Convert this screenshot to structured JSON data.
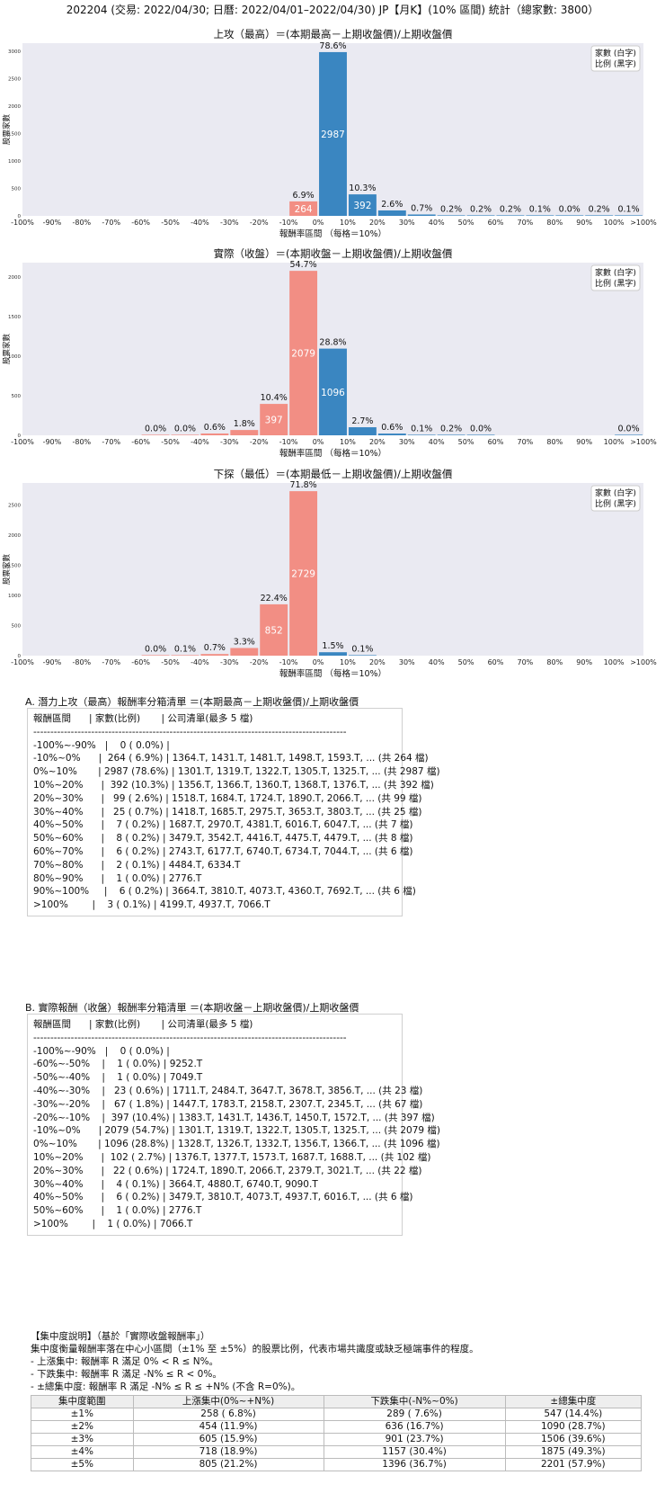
{
  "page_title": "202204 (交易: 2022/04/30; 日曆: 2022/04/01–2022/04/30) JP【月K】(10% 區間) 統計（總家數: 3800）",
  "chart_data": [
    {
      "type": "bar",
      "title": "上攻（最高）＝(本期最高－上期收盤價)/上期收盤價",
      "xlabel": "報酬率區間 （每格＝10%）",
      "ylabel": "股票家數",
      "legend": [
        "家數 (白字)",
        "比例 (黑字)"
      ],
      "legend_position": "top-right",
      "x_tick_labels": [
        "-100%",
        "-90%",
        "-80%",
        "-70%",
        "-60%",
        "-50%",
        "-40%",
        "-30%",
        "-20%",
        "-10%",
        "0%",
        "10%",
        "20%",
        "30%",
        "40%",
        "50%",
        "60%",
        "70%",
        "80%",
        "90%",
        "100%",
        ">100%"
      ],
      "y_ticks": [
        0,
        500,
        1000,
        1500,
        2000,
        2500,
        3000
      ],
      "ylim": [
        0,
        3150
      ],
      "bars": [
        {
          "bin": "-10%~0%",
          "index": 9,
          "count": 264,
          "pct": "6.9%",
          "color": "#f28e84"
        },
        {
          "bin": "0%~10%",
          "index": 10,
          "count": 2987,
          "pct": "78.6%",
          "color": "#3a86c1"
        },
        {
          "bin": "10%~20%",
          "index": 11,
          "count": 392,
          "pct": "10.3%",
          "color": "#3a86c1"
        },
        {
          "bin": "20%~30%",
          "index": 12,
          "count": 99,
          "pct": "2.6%",
          "color": "#3a86c1"
        },
        {
          "bin": "30%~40%",
          "index": 13,
          "count": 25,
          "pct": "0.7%",
          "color": "#3a86c1"
        },
        {
          "bin": "40%~50%",
          "index": 14,
          "count": 7,
          "pct": "0.2%",
          "color": "#3a86c1"
        },
        {
          "bin": "50%~60%",
          "index": 15,
          "count": 8,
          "pct": "0.2%",
          "color": "#3a86c1"
        },
        {
          "bin": "60%~70%",
          "index": 16,
          "count": 6,
          "pct": "0.2%",
          "color": "#3a86c1"
        },
        {
          "bin": "70%~80%",
          "index": 17,
          "count": 2,
          "pct": "0.1%",
          "color": "#3a86c1"
        },
        {
          "bin": "80%~90%",
          "index": 18,
          "count": 1,
          "pct": "0.0%",
          "color": "#3a86c1"
        },
        {
          "bin": "90%~100%",
          "index": 19,
          "count": 6,
          "pct": "0.2%",
          "color": "#3a86c1"
        },
        {
          "bin": ">100%",
          "index": 20,
          "count": 3,
          "pct": "0.1%",
          "color": "#3a86c1"
        }
      ]
    },
    {
      "type": "bar",
      "title": "實際（收盤）＝(本期收盤－上期收盤價)/上期收盤價",
      "xlabel": "報酬率區間 （每格＝10%）",
      "ylabel": "股票家數",
      "legend": [
        "家數 (白字)",
        "比例 (黑字)"
      ],
      "legend_position": "top-right",
      "x_tick_labels": [
        "-100%",
        "-90%",
        "-80%",
        "-70%",
        "-60%",
        "-50%",
        "-40%",
        "-30%",
        "-20%",
        "-10%",
        "0%",
        "10%",
        "20%",
        "30%",
        "40%",
        "50%",
        "60%",
        "70%",
        "80%",
        "90%",
        "100%",
        ">100%"
      ],
      "y_ticks": [
        0,
        500,
        1000,
        1500,
        2000
      ],
      "ylim": [
        0,
        2183
      ],
      "bars": [
        {
          "bin": "-60%~-50%",
          "index": 4,
          "count": 1,
          "pct": "0.0%",
          "color": "#f28e84"
        },
        {
          "bin": "-50%~-40%",
          "index": 5,
          "count": 1,
          "pct": "0.0%",
          "color": "#f28e84"
        },
        {
          "bin": "-40%~-30%",
          "index": 6,
          "count": 23,
          "pct": "0.6%",
          "color": "#f28e84"
        },
        {
          "bin": "-30%~-20%",
          "index": 7,
          "count": 67,
          "pct": "1.8%",
          "color": "#f28e84"
        },
        {
          "bin": "-20%~-10%",
          "index": 8,
          "count": 397,
          "pct": "10.4%",
          "color": "#f28e84"
        },
        {
          "bin": "-10%~0%",
          "index": 9,
          "count": 2079,
          "pct": "54.7%",
          "color": "#f28e84"
        },
        {
          "bin": "0%~10%",
          "index": 10,
          "count": 1096,
          "pct": "28.8%",
          "color": "#3a86c1"
        },
        {
          "bin": "10%~20%",
          "index": 11,
          "count": 102,
          "pct": "2.7%",
          "color": "#3a86c1"
        },
        {
          "bin": "20%~30%",
          "index": 12,
          "count": 22,
          "pct": "0.6%",
          "color": "#3a86c1"
        },
        {
          "bin": "30%~40%",
          "index": 13,
          "count": 4,
          "pct": "0.1%",
          "color": "#3a86c1"
        },
        {
          "bin": "40%~50%",
          "index": 14,
          "count": 6,
          "pct": "0.2%",
          "color": "#3a86c1"
        },
        {
          "bin": "50%~60%",
          "index": 15,
          "count": 1,
          "pct": "0.0%",
          "color": "#3a86c1"
        },
        {
          "bin": ">100%",
          "index": 20,
          "count": 1,
          "pct": "0.0%",
          "color": "#3a86c1"
        }
      ]
    },
    {
      "type": "bar",
      "title": "下探（最低）＝(本期最低－上期收盤價)/上期收盤價",
      "xlabel": "報酬率區間 （每格＝10%）",
      "ylabel": "股票家數",
      "legend": [
        "家數 (白字)",
        "比例 (黑字)"
      ],
      "legend_position": "top-right",
      "x_tick_labels": [
        "-100%",
        "-90%",
        "-80%",
        "-70%",
        "-60%",
        "-50%",
        "-40%",
        "-30%",
        "-20%",
        "-10%",
        "0%",
        "10%",
        "20%",
        "30%",
        "40%",
        "50%",
        "60%",
        "70%",
        "80%",
        "90%",
        "100%",
        ">100%"
      ],
      "y_ticks": [
        0,
        500,
        1000,
        1500,
        2000,
        2500
      ],
      "ylim": [
        0,
        2865
      ],
      "bars": [
        {
          "bin": "-60%~-50%",
          "index": 4,
          "count": 1,
          "pct": "0.0%",
          "color": "#f28e84"
        },
        {
          "bin": "-50%~-40%",
          "index": 5,
          "count": 3,
          "pct": "0.1%",
          "color": "#f28e84"
        },
        {
          "bin": "-40%~-30%",
          "index": 6,
          "count": 27,
          "pct": "0.7%",
          "color": "#f28e84"
        },
        {
          "bin": "-30%~-20%",
          "index": 7,
          "count": 127,
          "pct": "3.3%",
          "color": "#f28e84"
        },
        {
          "bin": "-20%~-10%",
          "index": 8,
          "count": 852,
          "pct": "22.4%",
          "color": "#f28e84"
        },
        {
          "bin": "-10%~0%",
          "index": 9,
          "count": 2729,
          "pct": "71.8%",
          "color": "#f28e84"
        },
        {
          "bin": "0%~10%",
          "index": 10,
          "count": 57,
          "pct": "1.5%",
          "color": "#3a86c1"
        },
        {
          "bin": "10%~20%",
          "index": 11,
          "count": 4,
          "pct": "0.1%",
          "color": "#3a86c1"
        }
      ]
    }
  ],
  "section_a": {
    "title": "A. 潛力上攻（最高）報酬率分箱清單 ＝(本期最高－上期收盤價)/上期收盤價",
    "lines": [
      "報酬區間      | 家數(比例)       | 公司清單(最多 5 檔)",
      "--------------------------------------------------------------------------------------------",
      "-100%~-90%   |    0 ( 0.0%) |",
      "-10%~0%      |  264 ( 6.9%) | 1364.T, 1431.T, 1481.T, 1498.T, 1593.T, ... (共 264 檔)",
      "0%~10%       | 2987 (78.6%) | 1301.T, 1319.T, 1322.T, 1305.T, 1325.T, ... (共 2987 檔)",
      "10%~20%      |  392 (10.3%) | 1356.T, 1366.T, 1360.T, 1368.T, 1376.T, ... (共 392 檔)",
      "20%~30%      |   99 ( 2.6%) | 1518.T, 1684.T, 1724.T, 1890.T, 2066.T, ... (共 99 檔)",
      "30%~40%      |   25 ( 0.7%) | 1418.T, 1685.T, 2975.T, 3653.T, 3803.T, ... (共 25 檔)",
      "40%~50%      |    7 ( 0.2%) | 1687.T, 2970.T, 4381.T, 6016.T, 6047.T, ... (共 7 檔)",
      "50%~60%      |    8 ( 0.2%) | 3479.T, 3542.T, 4416.T, 4475.T, 4479.T, ... (共 8 檔)",
      "60%~70%      |    6 ( 0.2%) | 2743.T, 6177.T, 6740.T, 6734.T, 7044.T, ... (共 6 檔)",
      "70%~80%      |    2 ( 0.1%) | 4484.T, 6334.T",
      "80%~90%      |    1 ( 0.0%) | 2776.T",
      "90%~100%     |    6 ( 0.2%) | 3664.T, 3810.T, 4073.T, 4360.T, 7692.T, ... (共 6 檔)",
      ">100%        |    3 ( 0.1%) | 4199.T, 4937.T, 7066.T"
    ]
  },
  "section_b": {
    "title": "B. 實際報酬（收盤）報酬率分箱清單 ＝(本期收盤－上期收盤價)/上期收盤價",
    "lines": [
      "報酬區間      | 家數(比例)       | 公司清單(最多 5 檔)",
      "--------------------------------------------------------------------------------------------",
      "-100%~-90%   |    0 ( 0.0%) |",
      "-60%~-50%    |    1 ( 0.0%) | 9252.T",
      "-50%~-40%    |    1 ( 0.0%) | 7049.T",
      "-40%~-30%    |   23 ( 0.6%) | 1711.T, 2484.T, 3647.T, 3678.T, 3856.T, ... (共 23 檔)",
      "-30%~-20%    |   67 ( 1.8%) | 1447.T, 1783.T, 2158.T, 2307.T, 2345.T, ... (共 67 檔)",
      "-20%~-10%    |  397 (10.4%) | 1383.T, 1431.T, 1436.T, 1450.T, 1572.T, ... (共 397 檔)",
      "-10%~0%      | 2079 (54.7%) | 1301.T, 1319.T, 1322.T, 1305.T, 1325.T, ... (共 2079 檔)",
      "0%~10%       | 1096 (28.8%) | 1328.T, 1326.T, 1332.T, 1356.T, 1366.T, ... (共 1096 檔)",
      "10%~20%      |  102 ( 2.7%) | 1376.T, 1377.T, 1573.T, 1687.T, 1688.T, ... (共 102 檔)",
      "20%~30%      |   22 ( 0.6%) | 1724.T, 1890.T, 2066.T, 2379.T, 3021.T, ... (共 22 檔)",
      "30%~40%      |    4 ( 0.1%) | 3664.T, 4880.T, 6740.T, 9090.T",
      "40%~50%      |    6 ( 0.2%) | 3479.T, 3810.T, 4073.T, 4937.T, 6016.T, ... (共 6 檔)",
      "50%~60%      |    1 ( 0.0%) | 2776.T",
      ">100%        |    1 ( 0.0%) | 7066.T"
    ]
  },
  "concentration": {
    "heading": "【集中度說明】（基於「實際收盤報酬率」）",
    "lines": [
      "集中度衡量報酬率落在中心小區間（±1% 至 ±5%）的股票比例，代表市場共識度或缺乏極端事件的程度。",
      " - 上漲集中: 報酬率 R 滿足 0% < R ≤ N%。",
      " - 下跌集中: 報酬率 R 滿足 -N% ≤ R < 0%。",
      " - ±總集中度: 報酬率 R 滿足 -N% ≤ R ≤ +N% (不含 R=0%)。"
    ],
    "headers": [
      "集中度範圍",
      "上漲集中(0%~+N%)",
      "下跌集中(-N%~0%)",
      "±總集中度"
    ],
    "rows": [
      [
        "±1%",
        "258 ( 6.8%)",
        "289 ( 7.6%)",
        "547 (14.4%)"
      ],
      [
        "±2%",
        "454 (11.9%)",
        "636 (16.7%)",
        "1090 (28.7%)"
      ],
      [
        "±3%",
        "605 (15.9%)",
        "901 (23.7%)",
        "1506 (39.6%)"
      ],
      [
        "±4%",
        "718 (18.9%)",
        "1157 (30.4%)",
        "1875 (49.3%)"
      ],
      [
        "±5%",
        "805 (21.2%)",
        "1396 (36.7%)",
        "2201 (57.9%)"
      ]
    ]
  }
}
